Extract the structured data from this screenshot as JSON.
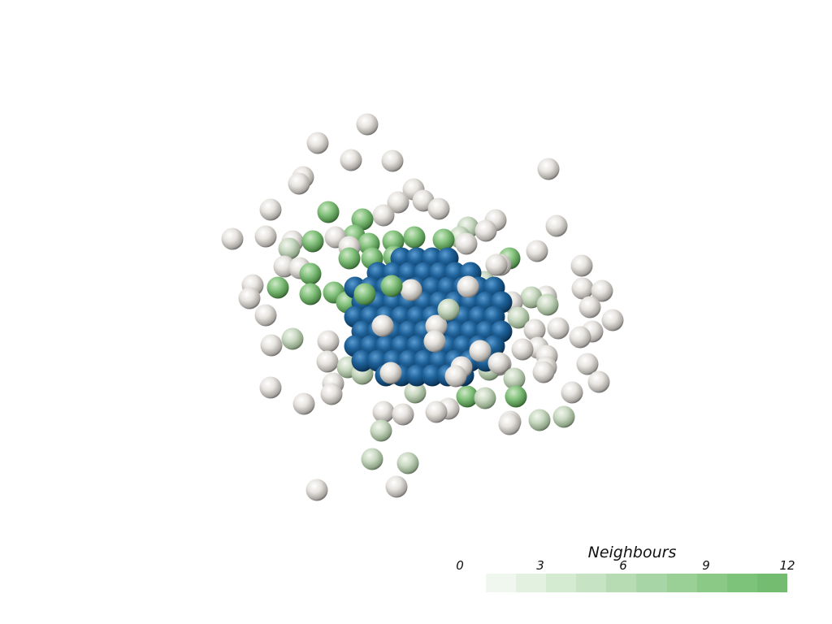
{
  "scene": {
    "description_colors": {
      "core_atom": "#1f5f96",
      "low_neighbour_atom": "#e3e1dd",
      "high_neighbour_atom": "#7cbf7a"
    }
  },
  "colorbar": {
    "title": "Neighbours",
    "min": 0,
    "max": 12,
    "ticks": [
      "0",
      "3",
      "6",
      "9",
      "12"
    ],
    "colors": [
      "#eff7ee",
      "#e2f1e0",
      "#d4ebd2",
      "#c6e4c3",
      "#b7dcb4",
      "#a8d5a5",
      "#9acf96",
      "#8bc987",
      "#7ec37a",
      "#74bd70"
    ]
  }
}
